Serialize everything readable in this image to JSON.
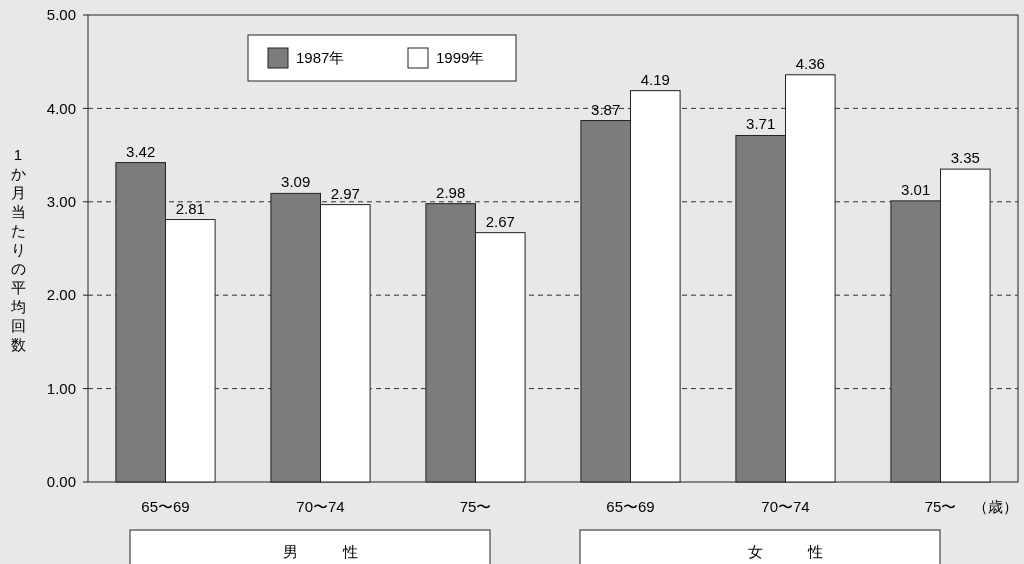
{
  "chart_data": {
    "type": "bar",
    "ylabel": "1か月当たりの平均回数",
    "categories": [
      "65〜69",
      "70〜74",
      "75〜",
      "65〜69",
      "70〜74",
      "75〜"
    ],
    "series": [
      {
        "name": "1987年",
        "color": "#7c7c7c",
        "values": [
          3.42,
          3.09,
          2.98,
          3.87,
          3.71,
          3.01
        ]
      },
      {
        "name": "1999年",
        "color": "#ffffff",
        "values": [
          2.81,
          2.97,
          2.67,
          4.19,
          4.36,
          3.35
        ]
      }
    ],
    "ylim": [
      0,
      5
    ],
    "yticks": [
      {
        "value": 0,
        "label": "0.00"
      },
      {
        "value": 1,
        "label": "1.00"
      },
      {
        "value": 2,
        "label": "2.00"
      },
      {
        "value": 3,
        "label": "3.00"
      },
      {
        "value": 4,
        "label": "4.00"
      },
      {
        "value": 5,
        "label": "5.00"
      }
    ],
    "grid": "y",
    "line_style": "dashed",
    "legend": "top",
    "data_labels": true,
    "annotations": [
      "男　　　性",
      "女　　　性",
      "（歳）"
    ]
  }
}
